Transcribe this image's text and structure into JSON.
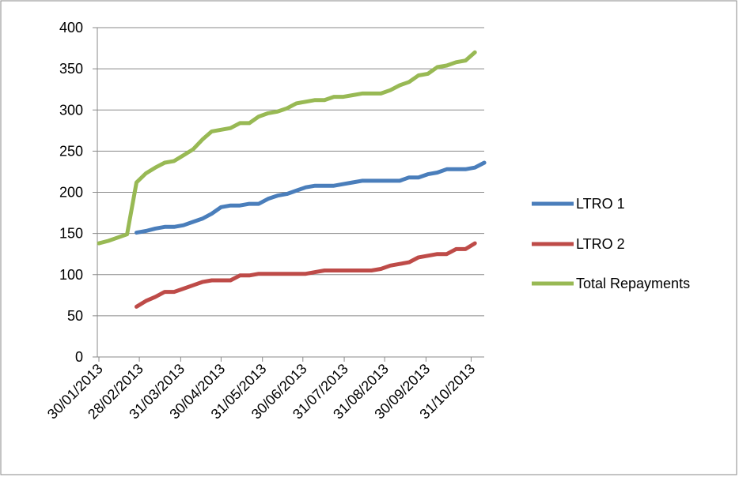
{
  "chart_data": {
    "type": "line",
    "title": "",
    "xlabel": "",
    "ylabel": "",
    "ylim": [
      0,
      400
    ],
    "yticks": [
      0,
      50,
      100,
      150,
      200,
      250,
      300,
      350,
      400
    ],
    "xtick_labels": [
      "30/01/2013",
      "28/02/2013",
      "31/03/2013",
      "30/04/2013",
      "31/05/2013",
      "30/06/2013",
      "31/07/2013",
      "31/08/2013",
      "30/09/2013",
      "31/10/2013"
    ],
    "grid": "horizontal",
    "legend_position": "right",
    "series": [
      {
        "name": "LTRO 1",
        "color": "#4a7ebb",
        "points": [
          [
            4,
            151
          ],
          [
            5,
            153
          ],
          [
            6,
            156
          ],
          [
            7,
            158
          ],
          [
            8,
            158
          ],
          [
            9,
            160
          ],
          [
            10,
            164
          ],
          [
            11,
            168
          ],
          [
            12,
            174
          ],
          [
            13,
            182
          ],
          [
            14,
            184
          ],
          [
            15,
            184
          ],
          [
            16,
            186
          ],
          [
            17,
            186
          ],
          [
            18,
            192
          ],
          [
            19,
            196
          ],
          [
            20,
            198
          ],
          [
            21,
            202
          ],
          [
            22,
            206
          ],
          [
            23,
            208
          ],
          [
            24,
            208
          ],
          [
            25,
            208
          ],
          [
            26,
            210
          ],
          [
            27,
            212
          ],
          [
            28,
            214
          ],
          [
            29,
            214
          ],
          [
            30,
            214
          ],
          [
            31,
            214
          ],
          [
            32,
            214
          ],
          [
            33,
            218
          ],
          [
            34,
            218
          ],
          [
            35,
            222
          ],
          [
            36,
            224
          ],
          [
            37,
            228
          ],
          [
            38,
            228
          ],
          [
            39,
            228
          ],
          [
            40,
            230
          ],
          [
            41,
            236
          ]
        ]
      },
      {
        "name": "LTRO 2",
        "color": "#be4b48",
        "points": [
          [
            4,
            61
          ],
          [
            5,
            68
          ],
          [
            6,
            73
          ],
          [
            7,
            79
          ],
          [
            8,
            79
          ],
          [
            9,
            83
          ],
          [
            10,
            87
          ],
          [
            11,
            91
          ],
          [
            12,
            93
          ],
          [
            13,
            93
          ],
          [
            14,
            93
          ],
          [
            15,
            99
          ],
          [
            16,
            99
          ],
          [
            17,
            101
          ],
          [
            18,
            101
          ],
          [
            19,
            101
          ],
          [
            20,
            101
          ],
          [
            21,
            101
          ],
          [
            22,
            101
          ],
          [
            23,
            103
          ],
          [
            24,
            105
          ],
          [
            25,
            105
          ],
          [
            26,
            105
          ],
          [
            27,
            105
          ],
          [
            28,
            105
          ],
          [
            29,
            105
          ],
          [
            30,
            107
          ],
          [
            31,
            111
          ],
          [
            32,
            113
          ],
          [
            33,
            115
          ],
          [
            34,
            121
          ],
          [
            35,
            123
          ],
          [
            36,
            125
          ],
          [
            37,
            125
          ],
          [
            38,
            131
          ],
          [
            39,
            131
          ],
          [
            40,
            138
          ]
        ]
      },
      {
        "name": "Total Repayments",
        "color": "#98b954",
        "points": [
          [
            0,
            138
          ],
          [
            1,
            141
          ],
          [
            2,
            145
          ],
          [
            3,
            149
          ],
          [
            4,
            212
          ],
          [
            5,
            223
          ],
          [
            6,
            230
          ],
          [
            7,
            236
          ],
          [
            8,
            238
          ],
          [
            9,
            245
          ],
          [
            10,
            252
          ],
          [
            11,
            264
          ],
          [
            12,
            274
          ],
          [
            13,
            276
          ],
          [
            14,
            278
          ],
          [
            15,
            284
          ],
          [
            16,
            284
          ],
          [
            17,
            292
          ],
          [
            18,
            296
          ],
          [
            19,
            298
          ],
          [
            20,
            302
          ],
          [
            21,
            308
          ],
          [
            22,
            310
          ],
          [
            23,
            312
          ],
          [
            24,
            312
          ],
          [
            25,
            316
          ],
          [
            26,
            316
          ],
          [
            27,
            318
          ],
          [
            28,
            320
          ],
          [
            29,
            320
          ],
          [
            30,
            320
          ],
          [
            31,
            324
          ],
          [
            32,
            330
          ],
          [
            33,
            334
          ],
          [
            34,
            342
          ],
          [
            35,
            344
          ],
          [
            36,
            352
          ],
          [
            37,
            354
          ],
          [
            38,
            358
          ],
          [
            39,
            360
          ],
          [
            40,
            370
          ]
        ]
      }
    ]
  }
}
